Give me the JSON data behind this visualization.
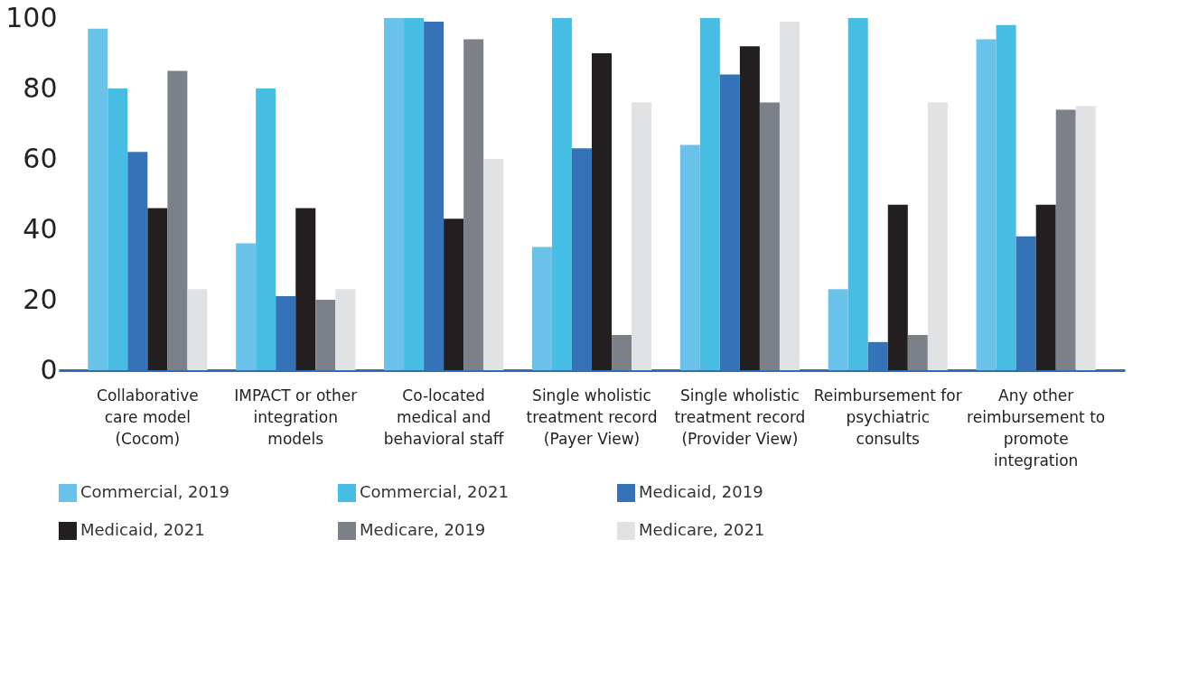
{
  "chart_data": {
    "type": "bar",
    "categories": [
      "Collaborative care model (Cocom)",
      "IMPACT or other integration models",
      "Co-located medical and behavioral staff",
      "Single wholistic treatment record (Payer View)",
      "Single wholistic treatment record (Provider View)",
      "Reimbursement for psychiatric consults",
      "Any other reimbursement to promote integration"
    ],
    "series": [
      {
        "name": "Commercial, 2019",
        "color": "#6ac2ea",
        "values": [
          97,
          36,
          100,
          35,
          64,
          23,
          94
        ]
      },
      {
        "name": "Commercial, 2021",
        "color": "#48bde3",
        "values": [
          80,
          80,
          100,
          100,
          100,
          100,
          98
        ]
      },
      {
        "name": "Medicaid, 2019",
        "color": "#3572b8",
        "values": [
          62,
          21,
          99,
          63,
          84,
          8,
          38
        ]
      },
      {
        "name": "Medicaid, 2021",
        "color": "#231f20",
        "values": [
          46,
          46,
          43,
          90,
          92,
          47,
          47
        ]
      },
      {
        "name": "Medicare, 2019",
        "color": "#7b8089",
        "values": [
          85,
          20,
          94,
          10,
          76,
          10,
          74
        ]
      },
      {
        "name": "Medicare, 2021",
        "color": "#e1e2e4",
        "values": [
          23,
          23,
          60,
          76,
          99,
          76,
          75
        ]
      }
    ],
    "ylim": [
      0,
      100
    ],
    "yticks": [
      0,
      20,
      40,
      60,
      80,
      100
    ],
    "grid": false,
    "legend": "bottom"
  }
}
